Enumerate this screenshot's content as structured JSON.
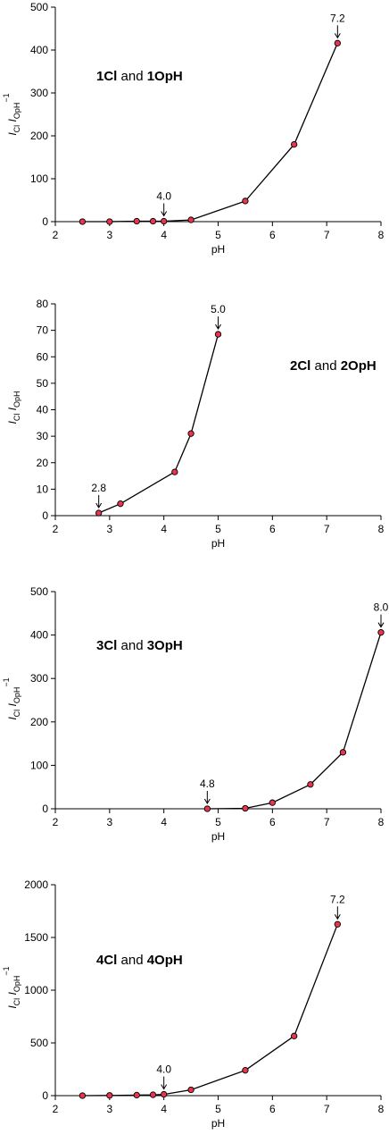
{
  "chart_data": [
    {
      "type": "line",
      "title_bold_1": "1Cl",
      "title_mid": " and ",
      "title_bold_2": "1OpH",
      "xlabel": "pH",
      "ylabel_main": "I",
      "ylabel_sub1": "Cl",
      "ylabel_sub2": "OpH",
      "ylabel_sup": "−1",
      "xlim": [
        2,
        8
      ],
      "ylim": [
        0,
        500
      ],
      "xticks": [
        "2",
        "3",
        "4",
        "5",
        "6",
        "7",
        "8"
      ],
      "yticks": [
        "0",
        "100",
        "200",
        "300",
        "400",
        "500"
      ],
      "x": [
        2.5,
        3.0,
        3.5,
        3.8,
        4.0,
        4.5,
        5.5,
        6.4,
        7.2
      ],
      "y": [
        0,
        0,
        1,
        1,
        1,
        4,
        48,
        180,
        416
      ],
      "annotations": [
        {
          "label": "4.0",
          "x": 4.0,
          "y": 1
        },
        {
          "label": "7.2",
          "x": 7.2,
          "y": 416
        }
      ],
      "marker_color": "#e8354f",
      "line_color": "#000000"
    },
    {
      "type": "line",
      "title_bold_1": "2Cl",
      "title_mid": " and ",
      "title_bold_2": "2OpH",
      "xlabel": "pH",
      "ylabel_main": "I",
      "ylabel_sub1": "Cl",
      "ylabel_sub2": "OpH",
      "ylabel_sup": "",
      "xlim": [
        2,
        8
      ],
      "ylim": [
        0,
        80
      ],
      "xticks": [
        "2",
        "3",
        "4",
        "5",
        "6",
        "7",
        "8"
      ],
      "yticks": [
        "0",
        "10",
        "20",
        "30",
        "40",
        "50",
        "60",
        "70",
        "80"
      ],
      "x": [
        2.8,
        3.2,
        4.2,
        4.5,
        5.0
      ],
      "y": [
        1,
        4.5,
        16.5,
        31,
        68.5
      ],
      "annotations": [
        {
          "label": "2.8",
          "x": 2.8,
          "y": 1
        },
        {
          "label": "5.0",
          "x": 5.0,
          "y": 68.5
        }
      ],
      "marker_color": "#e8354f",
      "line_color": "#000000"
    },
    {
      "type": "line",
      "title_bold_1": "3Cl",
      "title_mid": " and ",
      "title_bold_2": "3OpH",
      "xlabel": "pH",
      "ylabel_main": "I",
      "ylabel_sub1": "Cl",
      "ylabel_sub2": "OpH",
      "ylabel_sup": "−1",
      "xlim": [
        2,
        8
      ],
      "ylim": [
        0,
        500
      ],
      "xticks": [
        "2",
        "3",
        "4",
        "5",
        "6",
        "7",
        "8"
      ],
      "yticks": [
        "0",
        "100",
        "200",
        "300",
        "400",
        "500"
      ],
      "x": [
        4.8,
        5.5,
        6.0,
        6.7,
        7.3,
        8.0
      ],
      "y": [
        0,
        1,
        14,
        56,
        130,
        406
      ],
      "annotations": [
        {
          "label": "4.8",
          "x": 4.8,
          "y": 0
        },
        {
          "label": "8.0",
          "x": 8.0,
          "y": 406
        }
      ],
      "marker_color": "#e8354f",
      "line_color": "#000000"
    },
    {
      "type": "line",
      "title_bold_1": "4Cl",
      "title_mid": " and ",
      "title_bold_2": "4OpH",
      "xlabel": "pH",
      "ylabel_main": "I",
      "ylabel_sub1": "Cl",
      "ylabel_sub2": "OpH",
      "ylabel_sup": "−1",
      "xlim": [
        2,
        8
      ],
      "ylim": [
        0,
        2000
      ],
      "xticks": [
        "2",
        "3",
        "4",
        "5",
        "6",
        "7",
        "8"
      ],
      "yticks": [
        "0",
        "500",
        "1000",
        "1500",
        "2000"
      ],
      "x": [
        2.5,
        3.0,
        3.5,
        3.8,
        4.0,
        4.5,
        5.5,
        6.4,
        7.2
      ],
      "y": [
        0,
        2,
        5,
        8,
        12,
        55,
        240,
        565,
        1625
      ],
      "annotations": [
        {
          "label": "4.0",
          "x": 4.0,
          "y": 12
        },
        {
          "label": "7.2",
          "x": 7.2,
          "y": 1625
        }
      ],
      "marker_color": "#e8354f",
      "line_color": "#000000"
    }
  ]
}
